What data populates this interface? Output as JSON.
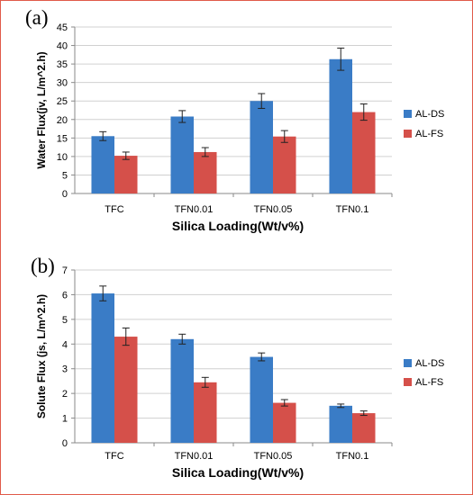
{
  "colors": {
    "ds": "#3a7cc6",
    "fs": "#d5504a",
    "frame": "#e05a4a"
  },
  "chart_data": [
    {
      "panel": "(a)",
      "type": "bar",
      "categories": [
        "TFC",
        "TFN0.01",
        "TFN0.05",
        "TFN0.1"
      ],
      "series": [
        {
          "name": "AL-DS",
          "values": [
            15.5,
            20.8,
            25.0,
            36.3
          ],
          "errors": [
            1.2,
            1.6,
            2.0,
            3.0
          ]
        },
        {
          "name": "AL-FS",
          "values": [
            10.2,
            11.2,
            15.4,
            22.0
          ],
          "errors": [
            1.0,
            1.2,
            1.6,
            2.2
          ]
        }
      ],
      "xlabel": "Silica Loading(Wt/v%)",
      "ylabel": "Water Flux(jv, L/m^2.h)",
      "ylim": [
        0,
        45
      ],
      "yticks": [
        "0",
        "5",
        "10",
        "15",
        "20",
        "25",
        "30",
        "35",
        "40",
        "45"
      ],
      "grid": true,
      "legend": "right"
    },
    {
      "panel": "(b)",
      "type": "bar",
      "categories": [
        "TFC",
        "TFN0.01",
        "TFN0.05",
        "TFN0.1"
      ],
      "series": [
        {
          "name": "AL-DS",
          "values": [
            6.05,
            4.2,
            3.48,
            1.5
          ],
          "errors": [
            0.3,
            0.2,
            0.16,
            0.07
          ]
        },
        {
          "name": "AL-FS",
          "values": [
            4.3,
            2.45,
            1.62,
            1.2
          ],
          "errors": [
            0.35,
            0.2,
            0.13,
            0.09
          ]
        }
      ],
      "xlabel": "Silica Loading(Wt/v%)",
      "ylabel": "Solute Flux (js, L/m^2.h)",
      "ylim": [
        0,
        7
      ],
      "yticks": [
        "0",
        "1",
        "2",
        "3",
        "4",
        "5",
        "6",
        "7"
      ],
      "grid": true,
      "legend": "right"
    }
  ]
}
